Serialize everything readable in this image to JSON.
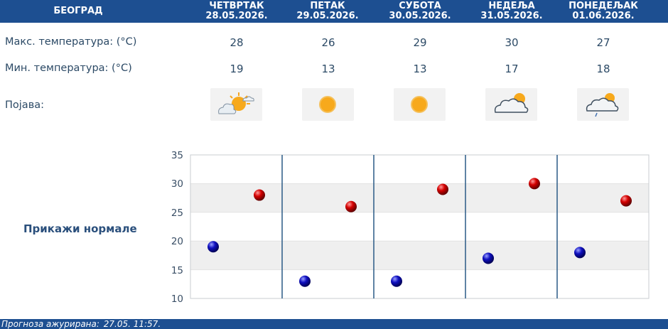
{
  "header": {
    "city": "БЕОГРАД",
    "days": [
      {
        "name": "ЧЕТВРТАК",
        "date": "28.05.2026."
      },
      {
        "name": "ПЕТАК",
        "date": "29.05.2026."
      },
      {
        "name": "СУБОТА",
        "date": "30.05.2026."
      },
      {
        "name": "НЕДЕЉА",
        "date": "31.05.2026."
      },
      {
        "name": "ПОНЕДЕЉАК",
        "date": "01.06.2026."
      }
    ]
  },
  "rows": {
    "max_label": "Макс. температура: (°C)",
    "min_label": "Мин. температура: (°C)",
    "phenomenon_label": "Појава:"
  },
  "max_temps": [
    28,
    26,
    29,
    30,
    27
  ],
  "min_temps": [
    19,
    13,
    13,
    17,
    18
  ],
  "icons": [
    "partly-sunny-icon",
    "sunny-icon",
    "sunny-icon",
    "cloudy-sun-icon",
    "cloudy-sun-rain-icon"
  ],
  "show_normals_label": "Прикажи нормале",
  "footer": {
    "label": "Прогноза ажурирана:",
    "value": "27.05. 11:57."
  },
  "colors": {
    "header": "#1d4f91",
    "max_marker": "#cc0000",
    "min_marker": "#0a0aa8",
    "sun": "#f5a623"
  },
  "chart_data": {
    "type": "scatter",
    "categories": [
      "ЧЕТВРТАК",
      "ПЕТАК",
      "СУБОТА",
      "НЕДЕЉА",
      "ПОНЕДЕЉАК"
    ],
    "series": [
      {
        "values": [
          28,
          26,
          29,
          30,
          27
        ],
        "color": "#cc0000"
      },
      {
        "values": [
          19,
          13,
          13,
          17,
          18
        ],
        "color": "#0a0aa8"
      }
    ],
    "ylim": [
      10,
      35
    ],
    "yticks": [
      35,
      30,
      25,
      20,
      15,
      10
    ],
    "grid": true
  }
}
